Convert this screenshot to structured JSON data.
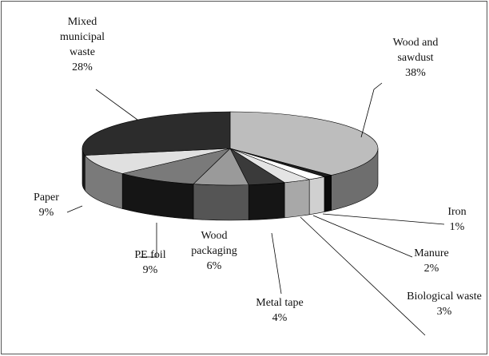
{
  "chart_data": {
    "type": "pie3d",
    "categories": [
      "Wood and sawdust",
      "Iron",
      "Manure",
      "Biological waste",
      "Metal tape",
      "Wood packaging",
      "PE foil",
      "Paper",
      "Mixed municipal waste"
    ],
    "values": [
      38,
      1,
      2,
      3,
      4,
      6,
      9,
      9,
      28
    ],
    "value_labels": [
      "38%",
      "1%",
      "2%",
      "3%",
      "4%",
      "6%",
      "9%",
      "9%",
      "28%"
    ],
    "colors": [
      "#bdbdbd",
      "#1e1e1e",
      "#ffffff",
      "#e4e4e4",
      "#3a3a3a",
      "#9a9a9a",
      "#7a7a7a",
      "#e0e0e0",
      "#2c2c2c"
    ],
    "side_colors": [
      "#6e6e6e",
      "#0a0a0a",
      "#d0d0d0",
      "#a8a8a8",
      "#151515",
      "#555555",
      "#151515",
      "#7a7a7a",
      "#1a1a1a"
    ]
  }
}
